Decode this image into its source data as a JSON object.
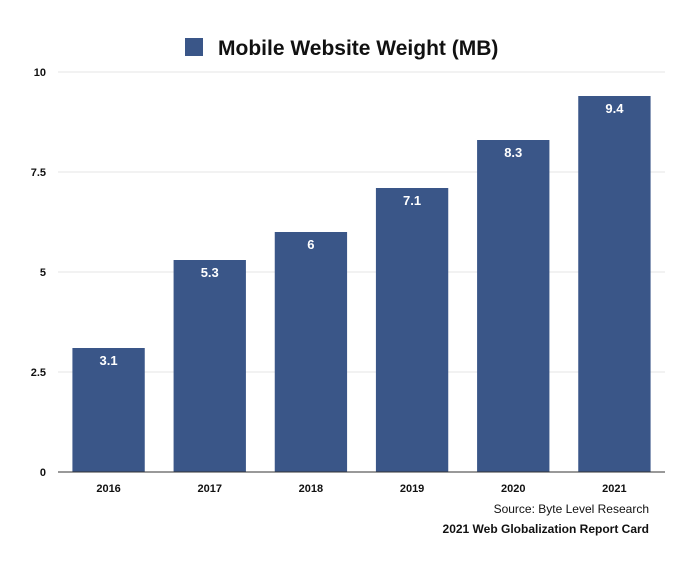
{
  "colors": {
    "bar": "#3a5688",
    "grid": "#e6e6e6",
    "axis": "#333333"
  },
  "legend": {
    "position": "top-center"
  },
  "footer": {
    "source": "Source: Byte Level Research",
    "report": "2021 Web Globalization Report Card"
  },
  "chart_data": {
    "type": "bar",
    "categories": [
      "2016",
      "2017",
      "2018",
      "2019",
      "2020",
      "2021"
    ],
    "series": [
      {
        "name": "Mobile Website Weight (MB)",
        "values": [
          3.1,
          5.3,
          6,
          7.1,
          8.3,
          9.4
        ]
      }
    ],
    "ylim": [
      0,
      10
    ],
    "yticks": [
      0,
      2.5,
      5,
      7.5,
      10
    ],
    "ytick_labels": [
      "0",
      "2.5",
      "5",
      "7.5",
      "10"
    ],
    "data_labels": [
      "3.1",
      "5.3",
      "6",
      "7.1",
      "8.3",
      "9.4"
    ],
    "grid": true
  }
}
